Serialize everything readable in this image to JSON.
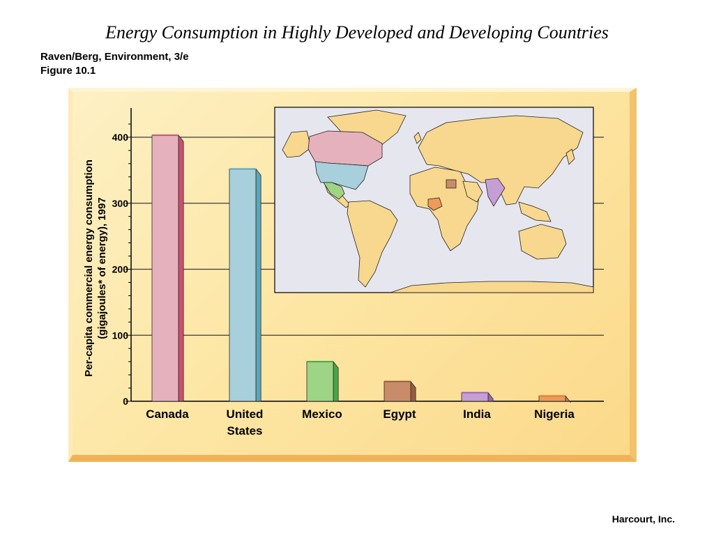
{
  "slide": {
    "title": "Energy Consumption in Highly Developed and Developing Countries",
    "source_line1": "Raven/Berg, Environment, 3/e",
    "source_line2": "Figure 10.1",
    "credit": "Harcourt, Inc."
  },
  "chart_data": {
    "type": "bar",
    "ylabel_line1": "Per-capita commercial energy consumption",
    "ylabel_line2": "(gigajoules* of energy), 1997",
    "ylim": [
      0,
      440
    ],
    "yticks": [
      0,
      100,
      200,
      300,
      400
    ],
    "grid": true,
    "categories": [
      {
        "name": "Canada",
        "label_lines": [
          "Canada"
        ],
        "value": 403,
        "front": "#e5b1bd",
        "side": "#cc4f6d"
      },
      {
        "name": "United States",
        "label_lines": [
          "United",
          "States"
        ],
        "value": 352,
        "front": "#a7cfdc",
        "side": "#5ba6b7"
      },
      {
        "name": "Mexico",
        "label_lines": [
          "Mexico"
        ],
        "value": 60,
        "front": "#9ed485",
        "side": "#4aa542"
      },
      {
        "name": "Egypt",
        "label_lines": [
          "Egypt"
        ],
        "value": 30,
        "front": "#c88c6a",
        "side": "#9b5a3b"
      },
      {
        "name": "India",
        "label_lines": [
          "India"
        ],
        "value": 13,
        "front": "#c59fd3",
        "side": "#9c65b0"
      },
      {
        "name": "Nigeria",
        "label_lines": [
          "Nigeria"
        ],
        "value": 8,
        "front": "#ef9a58",
        "side": "#e07a3a"
      }
    ],
    "inset": {
      "content": "world map highlighting the six countries",
      "ocean_color": "#e6e6ef",
      "land_color": "#f8d78f",
      "outline_color": "#222222"
    },
    "panel_color": "#fde7a6"
  }
}
